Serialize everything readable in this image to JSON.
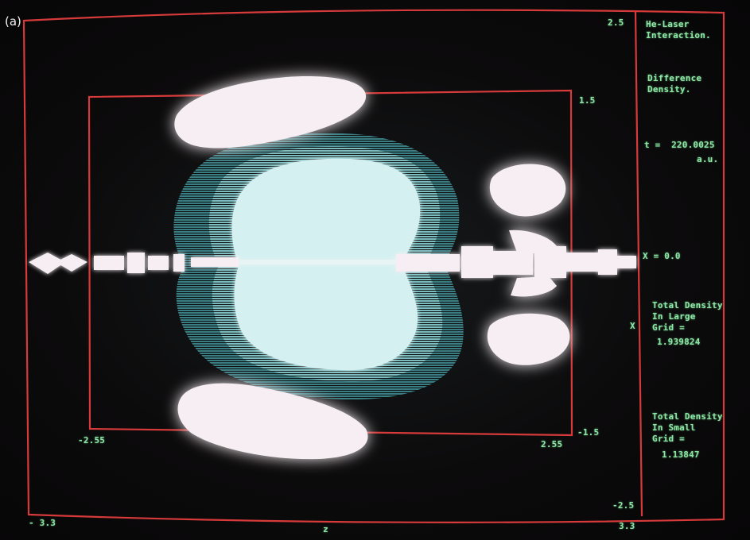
{
  "panel_label": "(a)",
  "colors": {
    "frame": "#d63a3a",
    "text": "#8ee6a6",
    "highest_density": "#f6eef2",
    "contour_1": "#cfeef0",
    "contour_2": "#7fc0c2",
    "contour_3": "#3e8a90"
  },
  "sidebar": {
    "title_line1": "He-Laser",
    "title_line2": "Interaction.",
    "subtitle_line1": "Difference",
    "subtitle_line2": "Density.",
    "time_label": "t =  220.0025",
    "time_unit": "a.u.",
    "x_value": "X = 0.0",
    "large_grid_line1": "Total Density",
    "large_grid_line2": "In Large",
    "large_grid_line3": "Grid =",
    "large_grid_value": "1.939824",
    "small_grid_line1": "Total Density",
    "small_grid_line2": "In Small",
    "small_grid_line3": "Grid =",
    "small_grid_value": "1.13847"
  },
  "axes": {
    "outer_y_top": "2.5",
    "outer_y_bottom": "-2.5",
    "outer_z_left": "- 3.3",
    "outer_z_right": "3.3",
    "inner_y_top": "1.5",
    "inner_y_bottom": "-1.5",
    "inner_z_left": "-2.55",
    "inner_z_right": "2.55",
    "z_axis_label": "z",
    "x_axis_label": "X"
  }
}
